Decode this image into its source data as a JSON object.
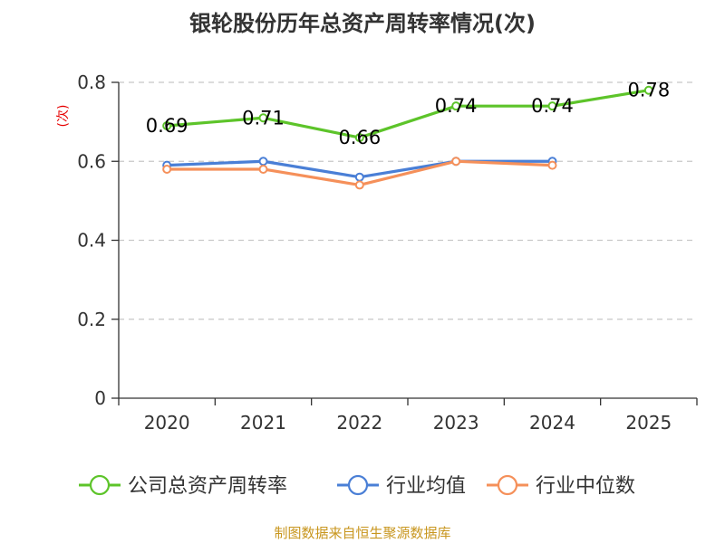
{
  "chart_data": {
    "type": "line",
    "title": "银轮股份历年总资产周转率情况(次)",
    "ylabel": "(次)",
    "xlabel": "",
    "categories": [
      "2020",
      "2021",
      "2022",
      "2023",
      "2024",
      "2025"
    ],
    "ylim": [
      0,
      0.8
    ],
    "yticks": [
      "0",
      "0.2",
      "0.4",
      "0.6",
      "0.8"
    ],
    "grid": true,
    "legend_position": "bottom",
    "series": [
      {
        "name": "公司总资产周转率",
        "color": "#5dc42a",
        "values": [
          0.69,
          0.71,
          0.66,
          0.74,
          0.74,
          0.78
        ],
        "labels": [
          "0.69",
          "0.71",
          "0.66",
          "0.74",
          "0.74",
          "0.78"
        ]
      },
      {
        "name": "行业均值",
        "color": "#4a7fd6",
        "values": [
          0.59,
          0.6,
          0.56,
          0.6,
          0.6,
          null
        ]
      },
      {
        "name": "行业中位数",
        "color": "#f5905a",
        "values": [
          0.58,
          0.58,
          0.54,
          0.6,
          0.59,
          null
        ]
      }
    ],
    "source": "制图数据来自恒生聚源数据库"
  }
}
